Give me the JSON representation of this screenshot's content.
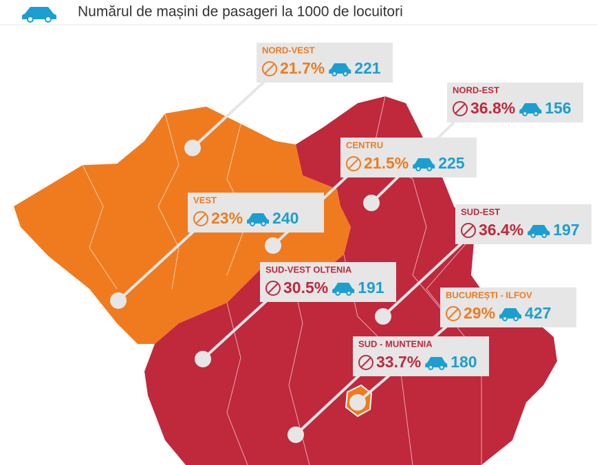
{
  "header": {
    "title": "Numărul de mașini de pasageri la 1000 de locuitori"
  },
  "regions": [
    {
      "name": "NORD-VEST",
      "share": "21.7%",
      "cars": "221",
      "color": "#f07b1f"
    },
    {
      "name": "NORD-EST",
      "share": "36.8%",
      "cars": "156",
      "color": "#c0283c"
    },
    {
      "name": "CENTRU",
      "share": "21.5%",
      "cars": "225",
      "color": "#f07b1f"
    },
    {
      "name": "VEST",
      "share": "23%",
      "cars": "240",
      "color": "#f07b1f"
    },
    {
      "name": "SUD-EST",
      "share": "36.4%",
      "cars": "197",
      "color": "#c0283c"
    },
    {
      "name": "SUD-VEST OLTENIA",
      "share": "30.5%",
      "cars": "191",
      "color": "#c0283c"
    },
    {
      "name": "BUCUREȘTI - ILFOV",
      "share": "29%",
      "cars": "427",
      "color": "#f07b1f"
    },
    {
      "name": "SUD - MUNTENIA",
      "share": "33.7%",
      "cars": "180",
      "color": "#c0283c"
    }
  ]
}
